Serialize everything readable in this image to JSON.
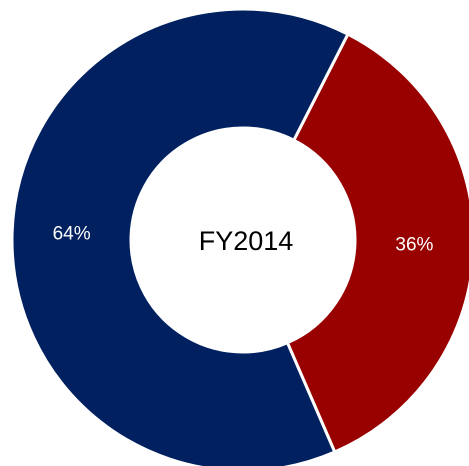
{
  "chart_data": {
    "type": "donut",
    "title": "FY2014",
    "categories": [
      null,
      null
    ],
    "values": [
      36,
      64
    ],
    "value_labels": [
      "36%",
      "64%"
    ],
    "colors": [
      "#990000",
      "#002060"
    ]
  }
}
